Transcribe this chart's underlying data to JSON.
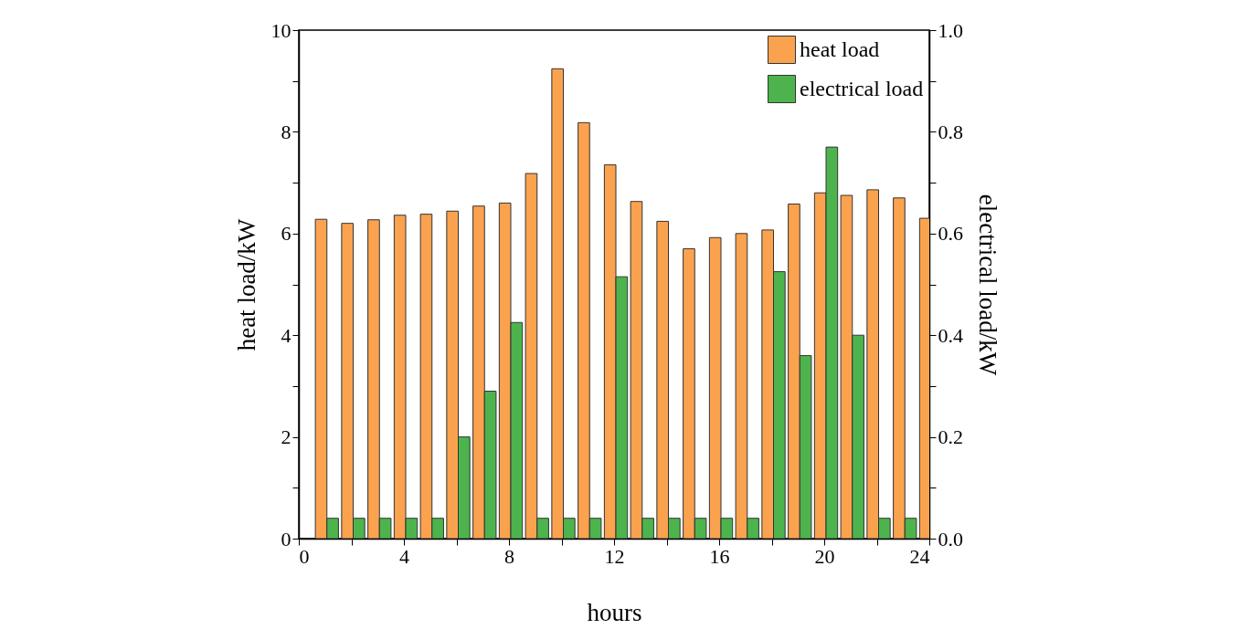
{
  "chart_data": {
    "type": "bar",
    "xlabel": "hours",
    "ylabel": "heat load/kW",
    "y2label": "electrical load/kW",
    "x": [
      1,
      2,
      3,
      4,
      5,
      6,
      7,
      8,
      9,
      10,
      11,
      12,
      13,
      14,
      15,
      16,
      17,
      18,
      19,
      20,
      21,
      22,
      23,
      24
    ],
    "series": [
      {
        "name": "heat load",
        "color": "#fba24f",
        "values": [
          6.28,
          6.2,
          6.27,
          6.36,
          6.38,
          6.44,
          6.54,
          6.6,
          7.18,
          9.24,
          8.18,
          7.35,
          6.63,
          6.24,
          5.7,
          5.92,
          6.0,
          6.07,
          6.58,
          6.8,
          6.75,
          6.86,
          6.7,
          6.3
        ]
      },
      {
        "name": "electrical load",
        "color": "#4db44d",
        "axis": "y2",
        "values": [
          0.04,
          0.04,
          0.04,
          0.04,
          0.04,
          0.2,
          0.29,
          0.425,
          0.04,
          0.04,
          0.04,
          0.515,
          0.04,
          0.04,
          0.04,
          0.04,
          0.04,
          0.525,
          0.36,
          0.77,
          0.4,
          0.04,
          0.04,
          null
        ]
      }
    ],
    "xlim": [
      0,
      24
    ],
    "xticks": [
      0,
      {
        "value": 2,
        "label": null
      },
      4,
      {
        "value": 6,
        "label": null
      },
      8,
      {
        "value": 10,
        "label": null
      },
      12,
      {
        "value": 14,
        "label": null
      },
      16,
      {
        "value": 18,
        "label": null
      },
      20,
      {
        "value": 22,
        "label": null
      },
      24
    ],
    "ylim": [
      0,
      10
    ],
    "yticks": [
      0,
      {
        "value": 1,
        "label": null
      },
      2,
      {
        "value": 3,
        "label": null
      },
      4,
      {
        "value": 5,
        "label": null
      },
      6,
      {
        "value": 7,
        "label": null
      },
      8,
      {
        "value": 9,
        "label": null
      },
      10
    ],
    "y2lim": [
      0,
      1
    ],
    "y2ticks": [
      {
        "value": 0,
        "label": "0.0"
      },
      {
        "value": 0.1,
        "label": null
      },
      0.2,
      {
        "value": 0.3,
        "label": null
      },
      0.4,
      {
        "value": 0.5,
        "label": null
      },
      0.6,
      {
        "value": 0.7,
        "label": null
      },
      0.8,
      {
        "value": 0.9,
        "label": null
      },
      {
        "value": 1,
        "label": "1.0"
      }
    ],
    "legend": "top right",
    "grid": false
  }
}
